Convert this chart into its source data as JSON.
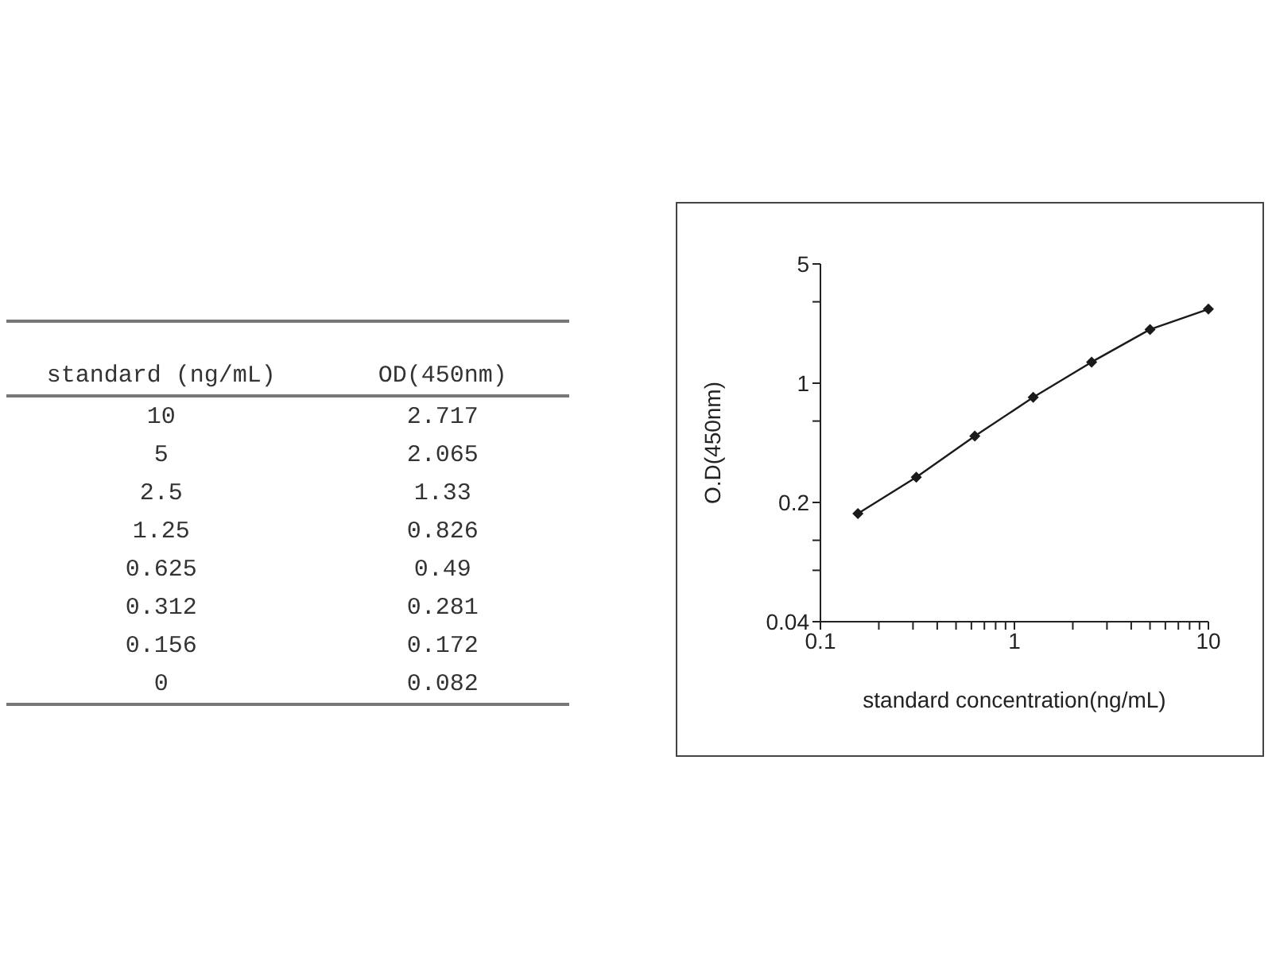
{
  "chart_data": [
    {
      "type": "other",
      "xlabel": "standard (ng/mL)",
      "ylabel": "OD(450nm)",
      "categories": [
        "10",
        "5",
        "2.5",
        "1.25",
        "0.625",
        "0.312",
        "0.156",
        "0"
      ],
      "values": [
        2.717,
        2.065,
        1.33,
        0.826,
        0.49,
        0.281,
        0.172,
        0.082
      ],
      "data_labels": true
    },
    {
      "type": "line",
      "xlabel": "standard concentration(ng/mL)",
      "ylabel": "O.D(450nm)",
      "log": "xy",
      "marker": "diamond",
      "line_style": "solid",
      "x": [
        0.156,
        0.312,
        0.625,
        1.25,
        2.5,
        5,
        10
      ],
      "series": [
        {
          "color": "#1a1a1a",
          "values": [
            0.172,
            0.281,
            0.49,
            0.826,
            1.33,
            2.065,
            2.717
          ]
        }
      ],
      "xlim": [
        0.1,
        10
      ],
      "xticks": [
        0.1,
        {
          "value": 0.2,
          "label": null
        },
        {
          "value": 0.3,
          "label": null
        },
        {
          "value": 0.4,
          "label": null
        },
        {
          "value": 0.5,
          "label": null
        },
        {
          "value": 0.6,
          "label": null
        },
        {
          "value": 0.7,
          "label": null
        },
        {
          "value": 0.8,
          "label": null
        },
        {
          "value": 0.9,
          "label": null
        },
        1,
        {
          "value": 2,
          "label": null
        },
        {
          "value": 3,
          "label": null
        },
        {
          "value": 4,
          "label": null
        },
        {
          "value": 5,
          "label": null
        },
        {
          "value": 6,
          "label": null
        },
        {
          "value": 7,
          "label": null
        },
        {
          "value": 8,
          "label": null
        },
        {
          "value": 9,
          "label": null
        },
        10
      ],
      "ylim": [
        0.04,
        5
      ],
      "yticks": [
        0.04,
        {
          "value": 0.08,
          "label": null
        },
        {
          "value": 0.12,
          "label": null
        },
        0.2,
        {
          "value": 0.6,
          "label": null
        },
        1,
        {
          "value": 3,
          "label": null
        },
        5
      ]
    }
  ]
}
